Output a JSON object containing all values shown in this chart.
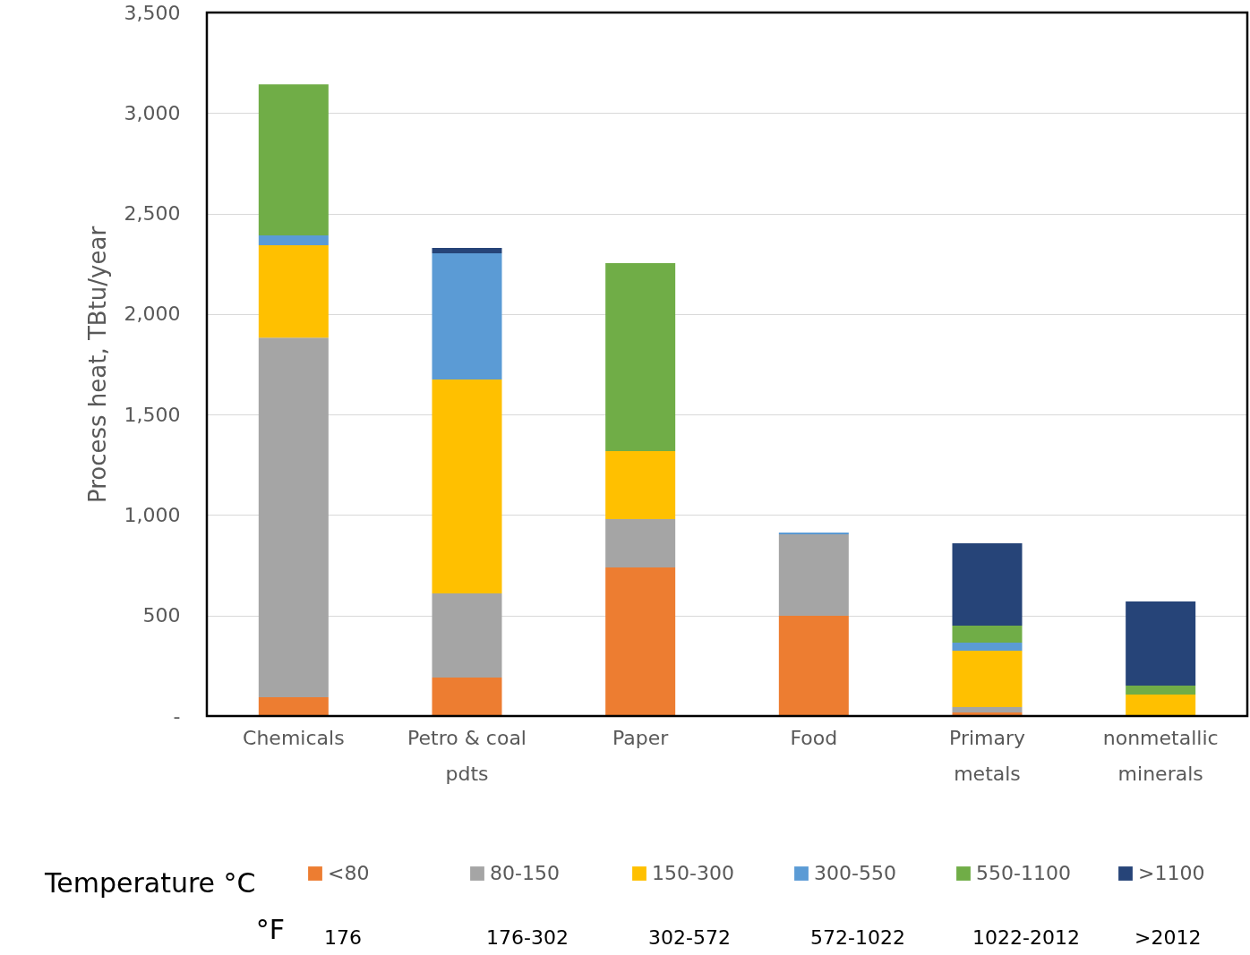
{
  "chart_data": {
    "type": "bar",
    "stacked": true,
    "ylabel": "Process heat, TBtu/year",
    "legend_title": "Temperature °C",
    "categories": [
      "Chemicals",
      "Petro & coal pdts",
      "Paper",
      "Food",
      "Primary metals",
      "nonmetallic minerals"
    ],
    "series": [
      {
        "name": "<80",
        "color": "#ed7d31",
        "values": [
          93,
          191,
          739,
          499,
          18,
          null
        ]
      },
      {
        "name": "80-150",
        "color": "#a5a5a5",
        "values": [
          1790,
          419,
          241,
          405,
          27,
          null
        ]
      },
      {
        "name": "150-300",
        "color": "#ffc000",
        "values": [
          459,
          1064,
          338,
          null,
          280,
          107
        ]
      },
      {
        "name": "300-550",
        "color": "#5b9bd5",
        "values": [
          49,
          628,
          null,
          9,
          40,
          null
        ]
      },
      {
        "name": "550-1100",
        "color": "#70ad47",
        "values": [
          752,
          null,
          935,
          null,
          85,
          44
        ]
      },
      {
        "name": ">1100",
        "color": "#264478",
        "values": [
          null,
          27,
          null,
          null,
          409,
          419
        ]
      }
    ],
    "ylim": [
      0,
      3500
    ],
    "yticks": [
      {
        "value": 0,
        "label": "-"
      },
      500,
      {
        "value": 1000,
        "label": "1,000"
      },
      {
        "value": 1500,
        "label": "1,500"
      },
      {
        "value": 2000,
        "label": "2,000"
      },
      {
        "value": 2500,
        "label": "2,500"
      },
      {
        "value": 3000,
        "label": "3,000"
      },
      {
        "value": 3500,
        "label": "3,500"
      }
    ],
    "grid": "y",
    "legend": "bottom",
    "annotations": [
      "°F",
      "176",
      "176-302",
      "302-572",
      "572-1022",
      "1022-2012",
      ">2012"
    ]
  }
}
